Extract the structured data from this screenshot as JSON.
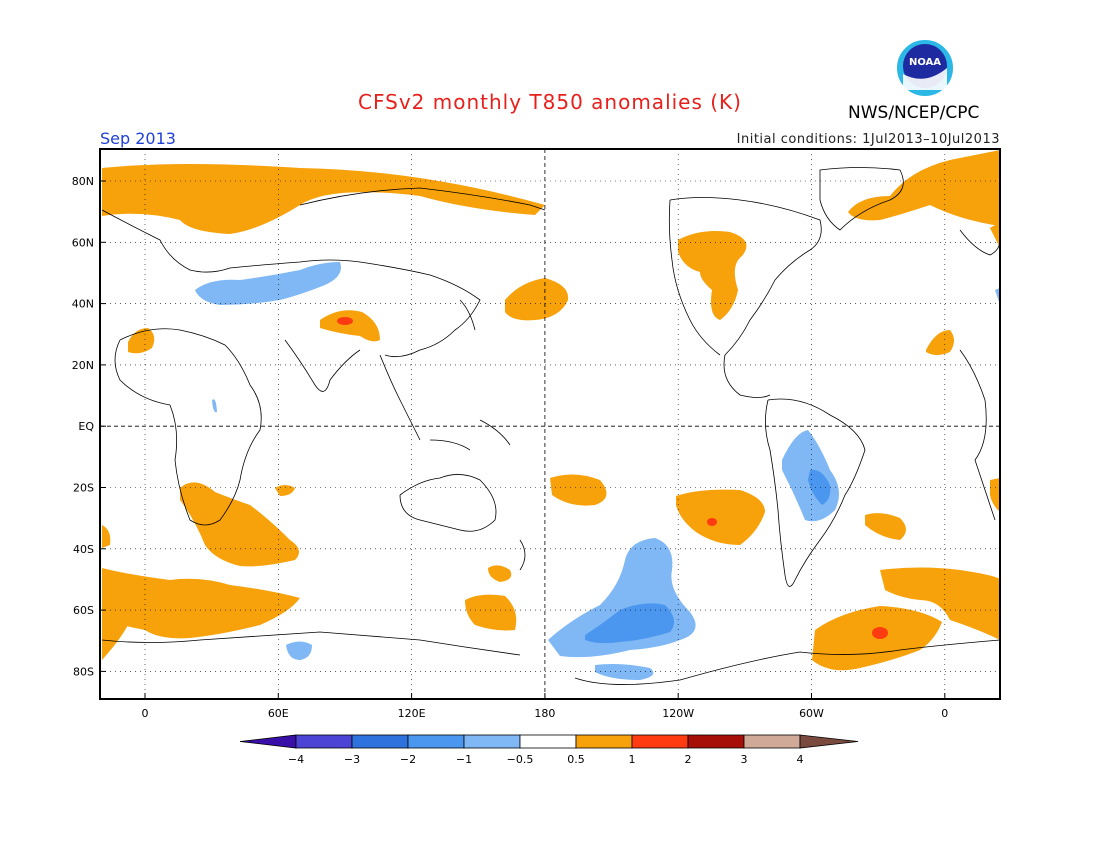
{
  "header": {
    "title": "CFSv2 monthly T850 anomalies (K)",
    "agency": "NWS/NCEP/CPC",
    "logo_text": "NOAA",
    "month": "Sep 2013",
    "initial_conditions": "Initial conditions: 1Jul2013–10Jul2013"
  },
  "map": {
    "lat_ticks": [
      "80N",
      "60N",
      "40N",
      "20N",
      "EQ",
      "20S",
      "40S",
      "60S",
      "80S"
    ],
    "lon_ticks": [
      "0",
      "60E",
      "120E",
      "180",
      "120W",
      "60W",
      "0"
    ]
  },
  "colorbar": {
    "labels": [
      "−4",
      "−3",
      "−2",
      "−1",
      "−0.5",
      "0.5",
      "1",
      "2",
      "3",
      "4"
    ],
    "colors": [
      "#3a0fa8",
      "#4b44d4",
      "#2e72de",
      "#4b96ee",
      "#7fb8f4",
      "#ffffff",
      "#f7a10b",
      "#ff3b12",
      "#a60f08",
      "#d1a998",
      "#7a4a3f"
    ]
  },
  "colors": {
    "warm1": "#f7a10b",
    "warm2": "#ff3b12",
    "cool1": "#7fb8f4",
    "cool2": "#4b96ee"
  }
}
